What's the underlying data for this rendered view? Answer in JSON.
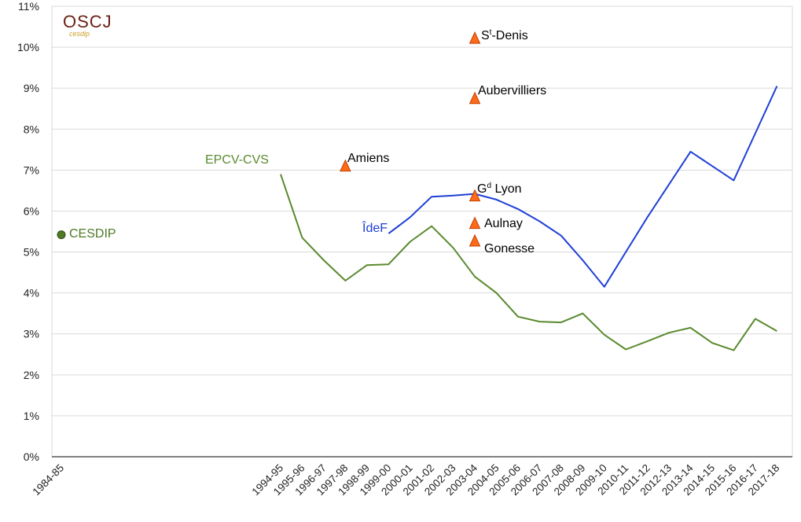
{
  "logo": {
    "text": "OSCJ",
    "subtext": "cesdip"
  },
  "colors": {
    "ideF": "#1f3fd6",
    "epcv": "#5a8a2e",
    "cesdip_dot": "#4f7a26",
    "triangle": "#ff6a1a",
    "grid": "#d9d9d9",
    "axis": "#000000"
  },
  "chart_data": {
    "type": "line",
    "categories": [
      "1984-85",
      "1994-95",
      "1995-96",
      "1996-97",
      "1997-98",
      "1998-99",
      "1999-00",
      "2000-01",
      "2001-02",
      "2002-03",
      "2003-04",
      "2004-05",
      "2005-06",
      "2006-07",
      "2007-08",
      "2008-09",
      "2009-10",
      "2010-11",
      "2011-12",
      "2012-13",
      "2013-14",
      "2014-15",
      "2015-16",
      "2016-17",
      "2017-18"
    ],
    "ylim": [
      0,
      11
    ],
    "yticks": [
      "0%",
      "1%",
      "2%",
      "3%",
      "4%",
      "5%",
      "6%",
      "7%",
      "8%",
      "9%",
      "10%",
      "11%"
    ],
    "grid": true,
    "series": [
      {
        "name": "ÎdeF",
        "color": "#1f3fd6",
        "x": [
          "1999-00",
          "2000-01",
          "2001-02",
          "2002-03",
          "2003-04",
          "2004-05",
          "2005-06",
          "2006-07",
          "2007-08",
          "2008-09",
          "2009-10",
          "2010-11",
          "2011-12",
          "2012-13",
          "2013-14",
          "2014-15",
          "2015-16",
          "2016-17",
          "2017-18"
        ],
        "values": [
          5.45,
          5.85,
          6.35,
          6.38,
          6.42,
          6.28,
          6.05,
          5.75,
          5.4,
          4.8,
          4.15,
          5.0,
          5.85,
          6.65,
          7.45,
          7.1,
          6.75,
          7.9,
          9.05
        ]
      },
      {
        "name": "EPCV-CVS",
        "color": "#5a8a2e",
        "x": [
          "1994-95",
          "1995-96",
          "1996-97",
          "1997-98",
          "1998-99",
          "1999-00",
          "2000-01",
          "2001-02",
          "2002-03",
          "2003-04",
          "2004-05",
          "2005-06",
          "2006-07",
          "2007-08",
          "2008-09",
          "2009-10",
          "2010-11",
          "2011-12",
          "2012-13",
          "2013-14",
          "2014-15",
          "2015-16",
          "2016-17",
          "2017-18"
        ],
        "values": [
          6.9,
          5.35,
          4.8,
          4.3,
          4.68,
          4.7,
          5.25,
          5.63,
          5.1,
          4.4,
          4.0,
          3.42,
          3.3,
          3.28,
          3.5,
          2.98,
          2.62,
          2.82,
          3.03,
          3.15,
          2.78,
          2.6,
          3.37,
          3.07
        ]
      }
    ],
    "points": [
      {
        "name": "CESDIP",
        "x": "1984-85",
        "value": 5.42,
        "marker": "circle"
      },
      {
        "name": "Amiens",
        "x": "1997-98",
        "value": 7.1,
        "marker": "triangle"
      },
      {
        "name": "St-Denis",
        "x": "2003-04",
        "value": 10.22,
        "marker": "triangle"
      },
      {
        "name": "Aubervilliers",
        "x": "2003-04",
        "value": 8.75,
        "marker": "triangle"
      },
      {
        "name": "Gd Lyon",
        "x": "2003-04",
        "value": 6.37,
        "marker": "triangle"
      },
      {
        "name": "Aulnay",
        "x": "2003-04",
        "value": 5.7,
        "marker": "triangle"
      },
      {
        "name": "Gonesse",
        "x": "2003-04",
        "value": 5.27,
        "marker": "triangle"
      }
    ]
  },
  "annotations": {
    "cesdip": "CESDIP",
    "epcv": "EPCV-CVS",
    "idef": "ÎdeF",
    "amiens": "Amiens",
    "stdenis_s": "S",
    "stdenis_sup": "t",
    "stdenis_rest": "-Denis",
    "aubervilliers": "Aubervilliers",
    "gdlyon_g": "G",
    "gdlyon_sup": "d",
    "gdlyon_rest": " Lyon",
    "aulnay": "Aulnay",
    "gonesse": "Gonesse"
  }
}
